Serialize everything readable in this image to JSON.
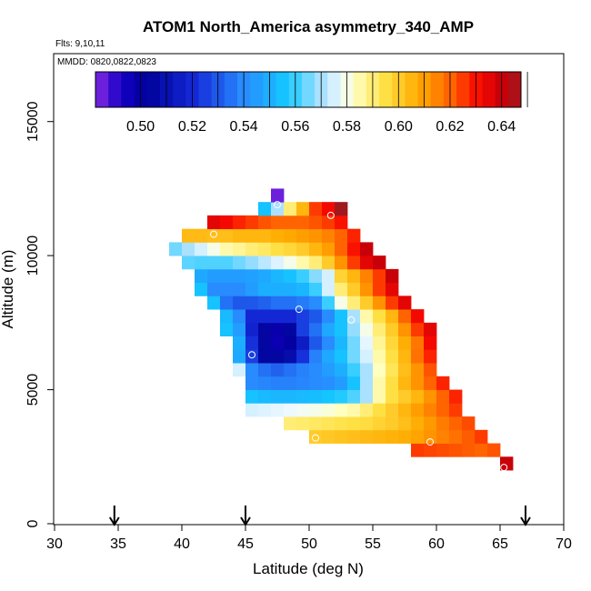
{
  "chart_data": {
    "type": "heatmap",
    "title": "ATOM1 North_America asymmetry_340_AMP",
    "annotations": {
      "flights": "Flts: 9,10,11",
      "dates": "MMDD: 0820,0822,0823"
    },
    "xlabel": "Latitude (deg N)",
    "ylabel": "Altitude (m)",
    "xlim": [
      30,
      70
    ],
    "ylim": [
      0,
      17500
    ],
    "x_ticks": [
      30,
      35,
      40,
      45,
      50,
      55,
      60,
      65,
      70
    ],
    "y_ticks": [
      0,
      5000,
      10000,
      15000
    ],
    "colorbar": {
      "min": 0.4825,
      "max": 0.6475,
      "ticks": [
        0.5,
        0.52,
        0.54,
        0.56,
        0.58,
        0.6,
        0.62,
        0.64
      ],
      "tick_labels": [
        "0.50",
        "0.52",
        "0.54",
        "0.56",
        "0.58",
        "0.60",
        "0.62",
        "0.64"
      ]
    },
    "grid": {
      "x_start": 39,
      "x_step": 1,
      "y_start": 2000,
      "y_step": 500
    },
    "rows": [
      {
        "y": 2000,
        "x0": 65,
        "values": [
          0.64
        ]
      },
      {
        "y": 2500,
        "x0": 58,
        "values": [
          0.625,
          0.624,
          0.623,
          0.622,
          0.621,
          0.62,
          0.622
        ]
      },
      {
        "y": 3000,
        "x0": 50,
        "values": [
          0.6,
          0.601,
          0.602,
          0.603,
          0.604,
          0.605,
          0.606,
          0.607,
          0.609,
          0.612,
          0.615,
          0.618,
          0.621,
          0.625
        ]
      },
      {
        "y": 3500,
        "x0": 48,
        "values": [
          0.59,
          0.591,
          0.592,
          0.593,
          0.594,
          0.595,
          0.596,
          0.598,
          0.6,
          0.603,
          0.607,
          0.611,
          0.616,
          0.62,
          0.623
        ]
      },
      {
        "y": 4000,
        "x0": 45,
        "values": [
          0.575,
          0.576,
          0.577,
          0.578,
          0.579,
          0.58,
          0.581,
          0.583,
          0.585,
          0.59,
          0.595,
          0.6,
          0.605,
          0.61,
          0.615,
          0.62,
          0.625
        ]
      },
      {
        "y": 4500,
        "x0": 45,
        "values": [
          0.555,
          0.553,
          0.552,
          0.552,
          0.553,
          0.554,
          0.556,
          0.558,
          0.562,
          0.57,
          0.585,
          0.595,
          0.6,
          0.605,
          0.612,
          0.62,
          0.628
        ]
      },
      {
        "y": 5000,
        "x0": 45,
        "values": [
          0.54,
          0.539,
          0.538,
          0.538,
          0.539,
          0.54,
          0.541,
          0.545,
          0.555,
          0.57,
          0.585,
          0.595,
          0.605,
          0.612,
          0.62,
          0.628
        ]
      },
      {
        "y": 5500,
        "x0": 44,
        "values": [
          0.575,
          0.54,
          0.535,
          0.532,
          0.535,
          0.538,
          0.54,
          0.545,
          0.55,
          0.56,
          0.57,
          0.583,
          0.593,
          0.603,
          0.612,
          0.622
        ]
      },
      {
        "y": 6000,
        "x0": 44,
        "values": [
          0.548,
          0.525,
          0.505,
          0.505,
          0.508,
          0.522,
          0.538,
          0.548,
          0.555,
          0.565,
          0.575,
          0.585,
          0.595,
          0.605,
          0.618,
          0.628
        ]
      },
      {
        "y": 6500,
        "x0": 44,
        "values": [
          0.55,
          0.522,
          0.505,
          0.497,
          0.5,
          0.515,
          0.53,
          0.54,
          0.552,
          0.565,
          0.577,
          0.587,
          0.597,
          0.607,
          0.617,
          0.632
        ]
      },
      {
        "y": 7000,
        "x0": 43,
        "values": [
          0.555,
          0.545,
          0.518,
          0.505,
          0.498,
          0.505,
          0.525,
          0.535,
          0.548,
          0.555,
          0.568,
          0.58,
          0.59,
          0.6,
          0.612,
          0.625,
          0.635
        ]
      },
      {
        "y": 7500,
        "x0": 43,
        "values": [
          0.553,
          0.54,
          0.52,
          0.52,
          0.52,
          0.52,
          0.525,
          0.53,
          0.54,
          0.555,
          0.57,
          0.585,
          0.595,
          0.605,
          0.62,
          0.632
        ]
      },
      {
        "y": 8000,
        "x0": 42,
        "values": [
          0.555,
          0.535,
          0.53,
          0.53,
          0.532,
          0.535,
          0.535,
          0.537,
          0.54,
          0.56,
          0.58,
          0.59,
          0.6,
          0.612,
          0.625,
          0.635
        ]
      },
      {
        "y": 8500,
        "x0": 41,
        "values": [
          0.555,
          0.54,
          0.54,
          0.54,
          0.545,
          0.55,
          0.55,
          0.55,
          0.552,
          0.56,
          0.575,
          0.59,
          0.6,
          0.612,
          0.625,
          0.635
        ]
      },
      {
        "y": 9000,
        "x0": 41,
        "values": [
          0.548,
          0.545,
          0.545,
          0.545,
          0.546,
          0.548,
          0.552,
          0.555,
          0.56,
          0.567,
          0.575,
          0.598,
          0.605,
          0.615,
          0.625,
          0.64
        ]
      },
      {
        "y": 9500,
        "x0": 40,
        "values": [
          0.563,
          0.562,
          0.562,
          0.562,
          0.565,
          0.568,
          0.572,
          0.576,
          0.58,
          0.585,
          0.59,
          0.6,
          0.612,
          0.625,
          0.635,
          0.64
        ]
      },
      {
        "y": 10000,
        "x0": 39,
        "values": [
          0.565,
          0.57,
          0.575,
          0.58,
          0.585,
          0.587,
          0.59,
          0.592,
          0.595,
          0.597,
          0.6,
          0.605,
          0.61,
          0.62,
          0.63,
          0.64
        ]
      },
      {
        "y": 10500,
        "x0": 40,
        "values": [
          0.604,
          0.604,
          0.603,
          0.603,
          0.605,
          0.605,
          0.605,
          0.607,
          0.608,
          0.61,
          0.612,
          0.615,
          0.62,
          0.628
        ]
      },
      {
        "y": 11000,
        "x0": 42,
        "values": [
          0.635,
          0.632,
          0.628,
          0.625,
          0.622,
          0.62,
          0.62,
          0.62,
          0.622,
          0.625,
          0.63
        ]
      },
      {
        "y": 11500,
        "x0": 46,
        "values": [
          0.555,
          0.57,
          0.59,
          0.605,
          0.625,
          0.632,
          0.648
        ]
      },
      {
        "y": 12000,
        "x0": 47,
        "values": [
          0.485
        ]
      }
    ],
    "circle_markers": [
      {
        "lat": 42.5,
        "alt": 10800
      },
      {
        "lat": 47.5,
        "alt": 11900
      },
      {
        "lat": 51.7,
        "alt": 11500
      },
      {
        "lat": 49.2,
        "alt": 8000
      },
      {
        "lat": 53.3,
        "alt": 7600
      },
      {
        "lat": 45.5,
        "alt": 6300
      },
      {
        "lat": 50.5,
        "alt": 3200
      },
      {
        "lat": 59.5,
        "alt": 3050
      },
      {
        "lat": 65.3,
        "alt": 2100
      }
    ],
    "arrow_markers": [
      34.7,
      45.0,
      67.0
    ]
  }
}
